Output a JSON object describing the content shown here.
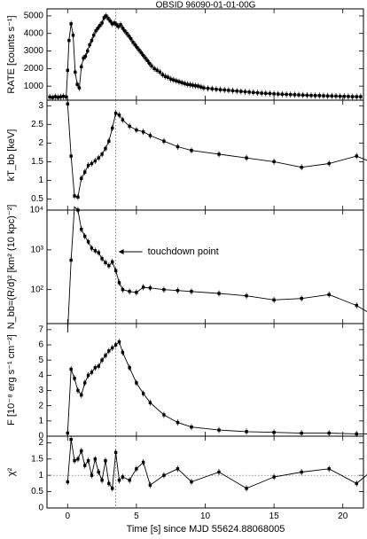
{
  "chart_data": [
    {
      "panel": "rate",
      "type": "line",
      "title": "OBSID 96090-01-01-00G",
      "ylabel": "RATE [counts s⁻¹]",
      "ylim": [
        200,
        5400
      ],
      "yticks": [
        1000,
        2000,
        3000,
        4000,
        5000
      ],
      "ytick_labels": [
        "1000",
        "2000",
        "3000",
        "4000",
        "5000"
      ],
      "x": [
        -1.3,
        -1.1,
        -0.9,
        -0.7,
        -0.5,
        -0.3,
        -0.1,
        0.0,
        0.1,
        0.25,
        0.4,
        0.55,
        0.7,
        0.85,
        1.0,
        1.15,
        1.3,
        1.45,
        1.6,
        1.75,
        1.9,
        2.05,
        2.2,
        2.35,
        2.5,
        2.65,
        2.8,
        2.95,
        3.1,
        3.25,
        3.4,
        3.55,
        3.7,
        3.85,
        4.0,
        4.15,
        4.3,
        4.45,
        4.6,
        4.75,
        4.9,
        5.05,
        5.2,
        5.35,
        5.5,
        5.65,
        5.8,
        5.95,
        6.1,
        6.3,
        6.5,
        6.7,
        6.9,
        7.1,
        7.3,
        7.5,
        7.7,
        7.9,
        8.1,
        8.3,
        8.5,
        8.7,
        8.9,
        9.1,
        9.3,
        9.5,
        9.7,
        9.9,
        10.2,
        10.5,
        10.8,
        11.1,
        11.4,
        11.7,
        12.0,
        12.3,
        12.6,
        12.9,
        13.2,
        13.5,
        13.8,
        14.1,
        14.4,
        14.7,
        15.0,
        15.3,
        15.6,
        15.9,
        16.2,
        16.5,
        16.8,
        17.1,
        17.4,
        17.7,
        18.0,
        18.3,
        18.6,
        18.9,
        19.2,
        19.5,
        19.8,
        20.1,
        20.4,
        20.7,
        21.0,
        21.3
      ],
      "values": [
        380,
        350,
        400,
        360,
        390,
        420,
        380,
        1900,
        3600,
        4550,
        3900,
        1800,
        1100,
        900,
        2100,
        2600,
        2700,
        3000,
        3350,
        3600,
        3900,
        4150,
        4300,
        4450,
        4600,
        4900,
        5000,
        4850,
        4700,
        4550,
        4600,
        4500,
        4400,
        4500,
        4300,
        4150,
        4000,
        3850,
        3700,
        3500,
        3350,
        3200,
        3050,
        2900,
        2750,
        2600,
        2450,
        2300,
        2150,
        2000,
        1900,
        1800,
        1650,
        1550,
        1500,
        1400,
        1350,
        1300,
        1250,
        1200,
        1150,
        1100,
        1080,
        1050,
        1020,
        1000,
        950,
        900,
        870,
        850,
        820,
        800,
        780,
        760,
        740,
        720,
        700,
        680,
        660,
        640,
        620,
        600,
        590,
        580,
        560,
        550,
        540,
        530,
        520,
        510,
        500,
        490,
        480,
        470,
        460,
        460,
        450,
        440,
        440,
        430,
        420,
        420,
        410,
        400,
        400,
        400
      ]
    },
    {
      "panel": "ktbb",
      "type": "line",
      "ylabel": "kT_bb [keV]",
      "ylim": [
        0.2,
        3.15
      ],
      "yticks": [
        0.5,
        1,
        1.5,
        2,
        2.5,
        3
      ],
      "ytick_labels": [
        "0.5",
        "1",
        "1.5",
        "2",
        "2.5",
        "3"
      ],
      "x": [
        0.0,
        0.25,
        0.5,
        0.75,
        1.0,
        1.25,
        1.5,
        1.75,
        2.0,
        2.25,
        2.5,
        2.75,
        3.0,
        3.25,
        3.5,
        3.75,
        4.0,
        4.5,
        5.0,
        5.5,
        6.0,
        7.0,
        8.0,
        9.0,
        11.0,
        13.0,
        15.0,
        17.0,
        19.0,
        21.0,
        22.0
      ],
      "values": [
        3.05,
        1.65,
        0.58,
        0.55,
        1.05,
        1.22,
        1.4,
        1.45,
        1.52,
        1.6,
        1.7,
        1.85,
        2.05,
        2.4,
        2.8,
        2.75,
        2.62,
        2.45,
        2.35,
        2.3,
        2.2,
        2.05,
        1.9,
        1.8,
        1.7,
        1.6,
        1.5,
        1.35,
        1.45,
        1.65,
        1.5
      ]
    },
    {
      "panel": "norm",
      "type": "line",
      "ylabel": "N_bb=(R/d)² [km² (10 kpc)⁻²]",
      "yscale": "log",
      "ylim": [
        14,
        10000
      ],
      "yticks": [
        100,
        1000,
        10000
      ],
      "ytick_labels": [
        "10²",
        "10³",
        "10⁴"
      ],
      "annotation": "touchdown point",
      "x": [
        0.0,
        0.25,
        0.5,
        0.75,
        1.0,
        1.25,
        1.5,
        1.75,
        2.0,
        2.25,
        2.5,
        2.75,
        3.0,
        3.25,
        3.5,
        3.75,
        4.0,
        4.5,
        5.0,
        5.5,
        6.0,
        7.0,
        8.0,
        9.0,
        11.0,
        13.0,
        15.0,
        17.0,
        19.0,
        21.0,
        22.0
      ],
      "values": [
        8,
        550,
        12000,
        10000,
        3300,
        2200,
        1600,
        1100,
        950,
        850,
        600,
        480,
        400,
        500,
        300,
        150,
        100,
        90,
        85,
        115,
        110,
        100,
        95,
        90,
        80,
        70,
        55,
        60,
        75,
        40,
        25
      ]
    },
    {
      "panel": "flux",
      "type": "line",
      "ylabel": "F [10⁻⁸ erg s⁻¹ cm⁻²]",
      "ylim": [
        0,
        7.4
      ],
      "yticks": [
        0,
        1,
        2,
        3,
        4,
        5,
        6,
        7
      ],
      "ytick_labels": [
        "0",
        "1",
        "2",
        "3",
        "4",
        "5",
        "6",
        "7"
      ],
      "x": [
        0.0,
        0.25,
        0.5,
        0.75,
        1.0,
        1.25,
        1.5,
        1.75,
        2.0,
        2.25,
        2.5,
        2.75,
        3.0,
        3.25,
        3.5,
        3.75,
        4.0,
        4.5,
        5.0,
        5.5,
        6.0,
        7.0,
        8.0,
        9.0,
        11.0,
        13.0,
        15.0,
        17.0,
        19.0,
        21.0,
        22.0
      ],
      "values": [
        0.2,
        4.4,
        3.8,
        3.0,
        2.7,
        3.5,
        4.0,
        4.2,
        4.5,
        4.6,
        5.0,
        5.3,
        5.6,
        5.8,
        6.0,
        6.2,
        5.5,
        4.5,
        3.5,
        2.8,
        2.2,
        1.4,
        0.9,
        0.6,
        0.4,
        0.3,
        0.25,
        0.2,
        0.2,
        0.15,
        0.15
      ]
    },
    {
      "panel": "chi2",
      "type": "line",
      "ylabel": "χ²",
      "ylim": [
        0,
        2.2
      ],
      "yticks": [
        0,
        0.5,
        1,
        1.5,
        2
      ],
      "ytick_labels": [
        "0",
        "0.5",
        "1",
        "1.5",
        "2"
      ],
      "x": [
        0.0,
        0.25,
        0.5,
        0.75,
        1.0,
        1.25,
        1.5,
        1.75,
        2.0,
        2.25,
        2.5,
        2.75,
        3.0,
        3.25,
        3.5,
        3.75,
        4.0,
        4.5,
        5.0,
        5.5,
        6.0,
        7.0,
        8.0,
        9.0,
        11.0,
        13.0,
        15.0,
        17.0,
        19.0,
        21.0,
        22.0
      ],
      "values": [
        0.8,
        2.1,
        1.45,
        1.5,
        1.75,
        1.3,
        1.45,
        1.0,
        1.5,
        1.1,
        0.85,
        1.45,
        0.75,
        0.6,
        1.7,
        0.85,
        0.95,
        0.85,
        1.2,
        1.4,
        0.7,
        1.0,
        1.2,
        0.8,
        1.1,
        0.6,
        0.95,
        1.1,
        1.2,
        0.75,
        1.1
      ]
    }
  ],
  "x_axis": {
    "label": "Time [s] since MJD 55624.88068005",
    "xlim": [
      -1.5,
      21.5
    ],
    "ticks": [
      0,
      5,
      10,
      15,
      20
    ],
    "tick_labels": [
      "0",
      "5",
      "10",
      "15",
      "20"
    ]
  },
  "touchdown_time": 3.5,
  "chi2_reference": 1,
  "colors": {
    "line": "#000000",
    "background": "#ffffff",
    "axis": "#000000",
    "reference": "#555555"
  }
}
